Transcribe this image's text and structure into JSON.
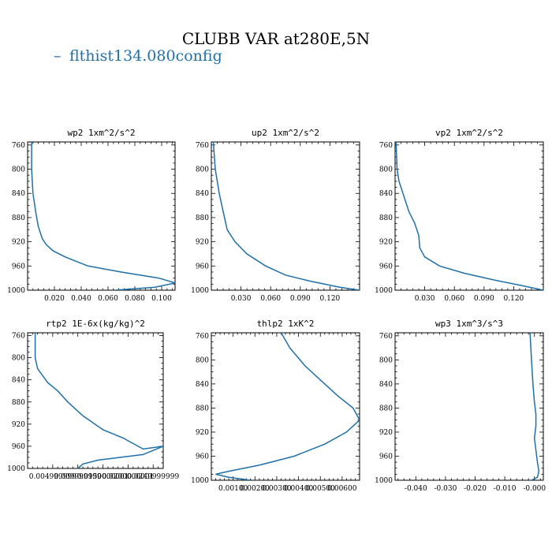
{
  "figure": {
    "title": "CLUBB VAR at280E,5N",
    "legend_label": "flthist134.080config",
    "series_color": "#1f6fa8"
  },
  "chart_data": [
    {
      "type": "line",
      "title": "wp2  1xm^2/s^2",
      "xlim": [
        0,
        0.11
      ],
      "ylim": [
        1000,
        755
      ],
      "xticks": [
        0.02,
        0.04,
        0.06,
        0.08,
        0.1
      ],
      "xticklabels": [
        "0.020",
        "0.040",
        "0.060",
        "0.080",
        "0.100"
      ],
      "yticks": [
        760,
        800,
        840,
        880,
        920,
        960,
        1000
      ],
      "yticklabels": [
        "760",
        "800",
        "840",
        "880",
        "920",
        "960",
        "1000"
      ],
      "series": [
        {
          "x": [
            0.003,
            0.003,
            0.004,
            0.006,
            0.008,
            0.011,
            0.014,
            0.019,
            0.028,
            0.045,
            0.07,
            0.098,
            0.11,
            0.095,
            0.065
          ],
          "y": [
            755,
            800,
            840,
            870,
            895,
            915,
            925,
            935,
            945,
            960,
            970,
            980,
            988,
            995,
            1000
          ]
        }
      ]
    },
    {
      "type": "line",
      "title": "up2  1xm^2/s^2",
      "xlim": [
        0,
        0.15
      ],
      "ylim": [
        1000,
        755
      ],
      "xticks": [
        0.03,
        0.06,
        0.09,
        0.12
      ],
      "xticklabels": [
        "0.030",
        "0.060",
        "0.090",
        "0.120"
      ],
      "yticks": [
        760,
        800,
        840,
        880,
        920,
        960,
        1000
      ],
      "yticklabels": [
        "760",
        "800",
        "840",
        "880",
        "920",
        "960",
        "1000"
      ],
      "series": [
        {
          "x": [
            0.002,
            0.004,
            0.008,
            0.012,
            0.016,
            0.024,
            0.036,
            0.055,
            0.075,
            0.1,
            0.13,
            0.15
          ],
          "y": [
            755,
            800,
            840,
            870,
            900,
            920,
            940,
            960,
            975,
            985,
            995,
            1000
          ]
        }
      ]
    },
    {
      "type": "line",
      "title": "vp2  1xm^2/s^2",
      "xlim": [
        0,
        0.15
      ],
      "ylim": [
        1000,
        755
      ],
      "xticks": [
        0.03,
        0.06,
        0.09,
        0.12
      ],
      "xticklabels": [
        "0.030",
        "0.060",
        "0.090",
        "0.120"
      ],
      "yticks": [
        760,
        800,
        840,
        880,
        920,
        960,
        1000
      ],
      "yticklabels": [
        "760",
        "800",
        "840",
        "880",
        "920",
        "960",
        "1000"
      ],
      "series": [
        {
          "x": [
            0.001,
            0.002,
            0.004,
            0.008,
            0.014,
            0.02,
            0.024,
            0.025,
            0.03,
            0.045,
            0.07,
            0.1,
            0.13,
            0.15
          ],
          "y": [
            755,
            800,
            820,
            840,
            870,
            890,
            910,
            930,
            945,
            960,
            972,
            983,
            993,
            1000
          ]
        }
      ]
    },
    {
      "type": "line",
      "title": "rtp2  1E-6x(kg/kg)^2",
      "xlim": [
        0,
        0.027
      ],
      "ylim": [
        1000,
        755
      ],
      "xticks": [
        0.005,
        0.01,
        0.015,
        0.02,
        0.025
      ],
      "xticklabels": [
        "0.004999999",
        "0.009999999",
        "0.0150000001",
        "0.0200000001",
        "0.0249999999"
      ],
      "yticks": [
        760,
        800,
        840,
        880,
        920,
        960,
        1000
      ],
      "yticklabels": [
        "760",
        "800",
        "840",
        "880",
        "920",
        "960",
        "1000"
      ],
      "series": [
        {
          "x": [
            0.0015,
            0.0015,
            0.002,
            0.004,
            0.006,
            0.008,
            0.011,
            0.015,
            0.019,
            0.023,
            0.027,
            0.023,
            0.014,
            0.011,
            0.01
          ],
          "y": [
            755,
            800,
            820,
            845,
            860,
            880,
            905,
            930,
            945,
            965,
            960,
            975,
            985,
            992,
            1000
          ]
        }
      ]
    },
    {
      "type": "line",
      "title": "thlp2  1xK^2",
      "xlim": [
        0,
        0.0068
      ],
      "ylim": [
        1000,
        755
      ],
      "xticks": [
        0.001,
        0.002,
        0.003,
        0.004,
        0.005,
        0.006
      ],
      "xticklabels": [
        "0.00100",
        "0.00200",
        "0.00300",
        "0.00400",
        "0.00500",
        "0.00600"
      ],
      "yticks": [
        760,
        800,
        840,
        880,
        920,
        960,
        1000
      ],
      "yticklabels": [
        "760",
        "800",
        "840",
        "880",
        "920",
        "960",
        "1000"
      ],
      "series": [
        {
          "x": [
            0.0032,
            0.0036,
            0.0043,
            0.0052,
            0.0058,
            0.0065,
            0.0068,
            0.0062,
            0.0052,
            0.0038,
            0.0022,
            0.0008,
            0.0002,
            0.0008,
            0.0018
          ],
          "y": [
            755,
            780,
            810,
            840,
            860,
            880,
            900,
            920,
            940,
            960,
            975,
            985,
            990,
            995,
            1000
          ]
        }
      ]
    },
    {
      "type": "line",
      "title": "wp3  1xm^3/s^3",
      "xlim": [
        -0.047,
        0.003
      ],
      "ylim": [
        1000,
        755
      ],
      "xticks": [
        -0.04,
        -0.03,
        -0.02,
        -0.01,
        0.0
      ],
      "xticklabels": [
        "-0.040",
        "-0.030",
        "-0.020",
        "-0.010",
        "-0.000"
      ],
      "yticks": [
        760,
        800,
        840,
        880,
        920,
        960,
        1000
      ],
      "yticklabels": [
        "760",
        "800",
        "840",
        "880",
        "920",
        "960",
        "1000"
      ],
      "series": [
        {
          "x": [
            -0.0015,
            -0.001,
            -0.0005,
            0.0,
            0.0005,
            0.0005,
            0.0,
            0.0005,
            0.001,
            0.0015,
            0.001,
            -0.001
          ],
          "y": [
            755,
            800,
            840,
            870,
            890,
            910,
            930,
            950,
            970,
            985,
            995,
            1000
          ]
        }
      ]
    }
  ]
}
